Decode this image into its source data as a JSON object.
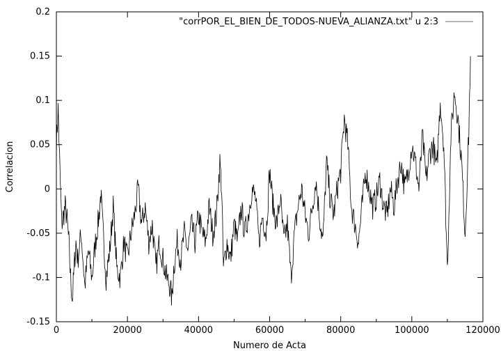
{
  "chart_data": {
    "type": "line",
    "title": "",
    "xlabel": "Numero de Acta",
    "ylabel": "Correlacion",
    "xlim": [
      0,
      120000
    ],
    "ylim": [
      -0.15,
      0.2
    ],
    "xticks": [
      0,
      20000,
      40000,
      60000,
      80000,
      100000,
      120000
    ],
    "xtick_labels": [
      "0",
      "20000",
      "40000",
      "60000",
      "80000",
      "100000",
      "120000"
    ],
    "yticks": [
      -0.15,
      -0.1,
      -0.05,
      0,
      0.05,
      0.1,
      0.15,
      0.2
    ],
    "ytick_labels": [
      "-0.15",
      "-0.1",
      "-0.05",
      "0",
      "0.05",
      "0.1",
      "0.15",
      "0.2"
    ],
    "grid": false,
    "legend_position": "top-right",
    "series": [
      {
        "name": "\"corrPOR_EL_BIEN_DE_TODOS-NUEVA_ALIANZA.txt\" u 2:3",
        "color": "#000000",
        "legend_color": "#a0a0a0",
        "x": [
          0,
          500,
          1000,
          1500,
          2000,
          2500,
          3000,
          3500,
          4000,
          4500,
          5000,
          5500,
          6000,
          7000,
          8000,
          9000,
          10000,
          11000,
          12000,
          12500,
          13000,
          14000,
          15000,
          16000,
          17000,
          18000,
          19000,
          20000,
          21000,
          22000,
          23000,
          24000,
          25000,
          26000,
          27000,
          28000,
          29000,
          30000,
          31000,
          32000,
          32500,
          33000,
          34000,
          35000,
          36000,
          37000,
          38000,
          39000,
          40000,
          41000,
          42000,
          43000,
          44000,
          45000,
          46000,
          46500,
          47000,
          48000,
          49000,
          50000,
          51000,
          52000,
          53000,
          54000,
          55000,
          56000,
          57000,
          58000,
          59000,
          60000,
          61000,
          62000,
          63000,
          64000,
          65000,
          66000,
          67000,
          68000,
          69000,
          70000,
          71000,
          72000,
          73000,
          74000,
          75000,
          76000,
          77000,
          78000,
          79000,
          80000,
          81000,
          82000,
          83000,
          84000,
          85000,
          86000,
          87000,
          88000,
          89000,
          90000,
          91000,
          92000,
          93000,
          94000,
          95000,
          96000,
          97000,
          98000,
          99000,
          100000,
          101000,
          102000,
          103000,
          104000,
          105000,
          106000,
          107000,
          108000,
          109000,
          110000,
          111000,
          112000,
          113000,
          114000,
          115000,
          116000,
          116500
        ],
        "y": [
          0.05,
          0.09,
          0.02,
          -0.04,
          -0.03,
          -0.02,
          -0.035,
          -0.06,
          -0.1,
          -0.125,
          -0.09,
          -0.06,
          -0.08,
          -0.05,
          -0.11,
          -0.07,
          -0.1,
          -0.06,
          -0.03,
          -0.005,
          -0.04,
          -0.1,
          -0.07,
          -0.02,
          -0.09,
          -0.1,
          -0.06,
          -0.08,
          -0.05,
          -0.03,
          0.0,
          -0.04,
          -0.02,
          -0.06,
          -0.04,
          -0.09,
          -0.06,
          -0.08,
          -0.1,
          -0.11,
          -0.125,
          -0.09,
          -0.06,
          -0.08,
          -0.05,
          -0.07,
          -0.04,
          -0.06,
          -0.03,
          -0.05,
          -0.06,
          -0.02,
          -0.05,
          -0.03,
          0.03,
          0.0,
          -0.09,
          -0.06,
          -0.08,
          -0.04,
          -0.06,
          -0.02,
          -0.05,
          -0.03,
          0.0,
          -0.01,
          -0.06,
          -0.03,
          -0.05,
          0.02,
          -0.02,
          -0.04,
          -0.01,
          -0.06,
          -0.04,
          -0.1,
          -0.05,
          -0.02,
          0.0,
          -0.03,
          -0.05,
          -0.02,
          0.01,
          -0.03,
          -0.06,
          0.03,
          -0.01,
          -0.03,
          0.0,
          0.02,
          0.08,
          0.05,
          -0.02,
          -0.04,
          -0.06,
          -0.02,
          0.02,
          0.0,
          -0.02,
          -0.01,
          0.01,
          -0.02,
          -0.03,
          0.0,
          -0.02,
          0.01,
          0.03,
          0.0,
          0.02,
          0.05,
          0.03,
          0.0,
          0.06,
          0.01,
          0.04,
          0.05,
          0.02,
          0.1,
          0.05,
          -0.09,
          0.06,
          0.11,
          0.08,
          0.03,
          -0.05,
          0.06,
          0.15
        ]
      }
    ]
  }
}
